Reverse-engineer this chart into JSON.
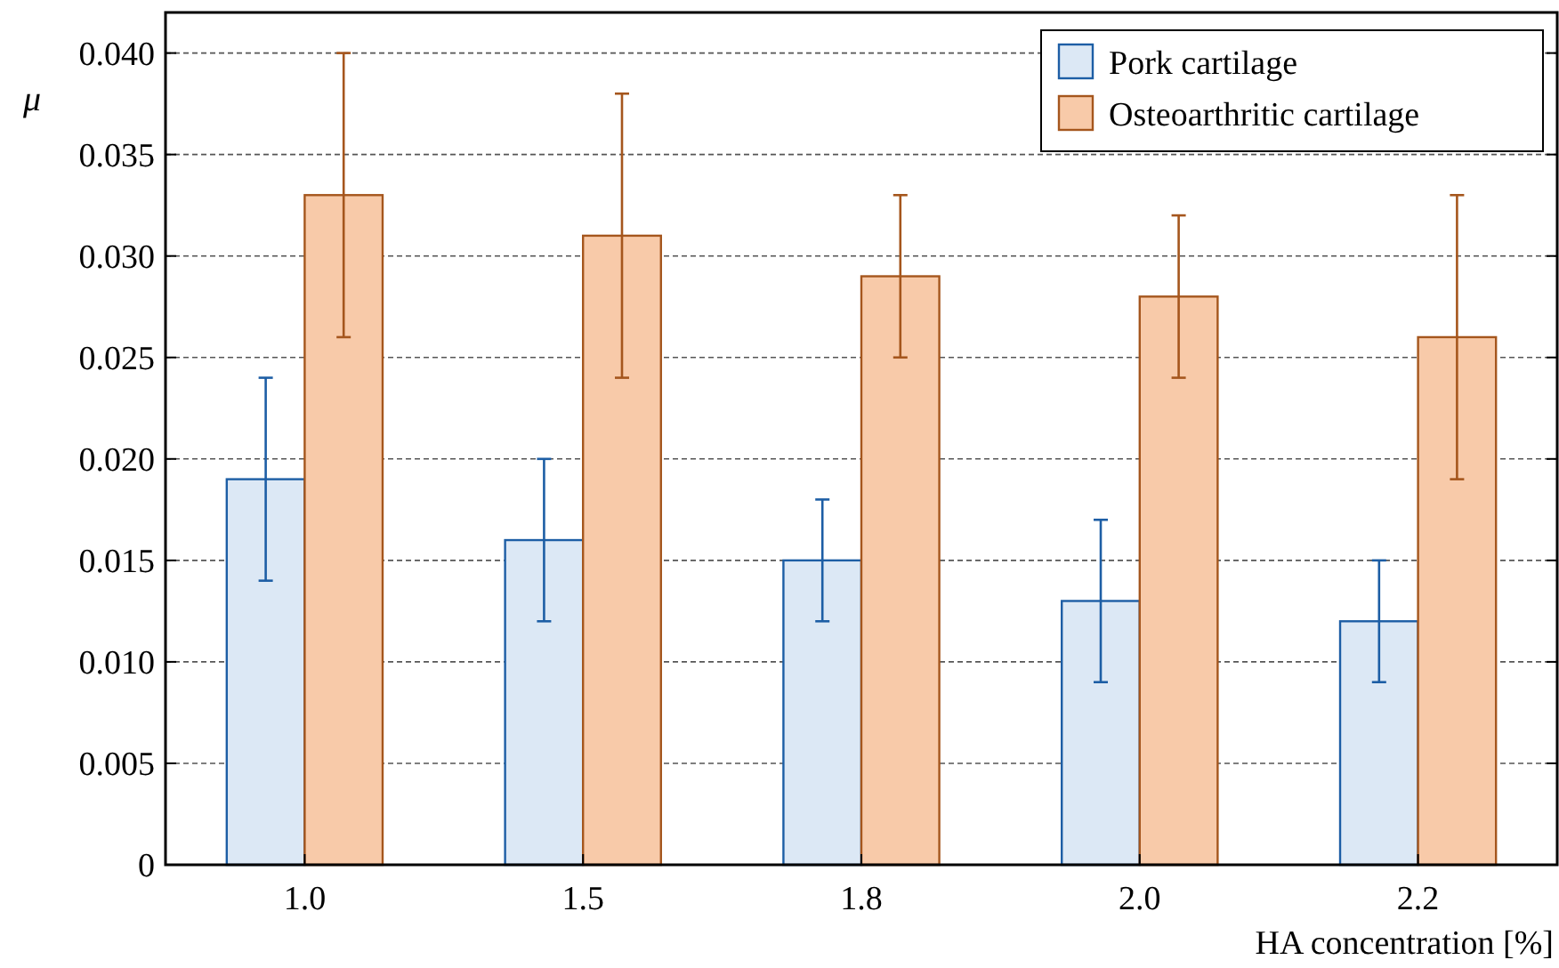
{
  "chart_data": {
    "type": "bar",
    "xlabel": "HA concentration [%]",
    "ylabel": "μ",
    "categories": [
      "1.0",
      "1.5",
      "1.8",
      "2.0",
      "2.2"
    ],
    "series": [
      {
        "name": "Pork cartilage",
        "color": "#dce8f5",
        "values": [
          0.019,
          0.016,
          0.015,
          0.013,
          0.012
        ],
        "errors": [
          [
            0.014,
            0.024
          ],
          [
            0.012,
            0.02
          ],
          [
            0.012,
            0.018
          ],
          [
            0.009,
            0.017
          ],
          [
            0.009,
            0.015
          ]
        ]
      },
      {
        "name": "Osteoarthritic cartilage",
        "color": "#f8caa9",
        "values": [
          0.033,
          0.031,
          0.029,
          0.028,
          0.026
        ],
        "errors": [
          [
            0.026,
            0.04
          ],
          [
            0.024,
            0.038
          ],
          [
            0.025,
            0.033
          ],
          [
            0.024,
            0.032
          ],
          [
            0.019,
            0.033
          ]
        ]
      }
    ],
    "ylim": [
      0,
      0.042
    ],
    "yticks": [
      {
        "value": 0,
        "label": "0"
      },
      0.005,
      {
        "value": 0.01,
        "label": "0.010"
      },
      0.015,
      {
        "value": 0.02,
        "label": "0.020"
      },
      0.025,
      {
        "value": 0.03,
        "label": "0.030"
      },
      0.035,
      {
        "value": 0.04,
        "label": "0.040"
      }
    ],
    "grid": "y",
    "legend": "top right"
  }
}
